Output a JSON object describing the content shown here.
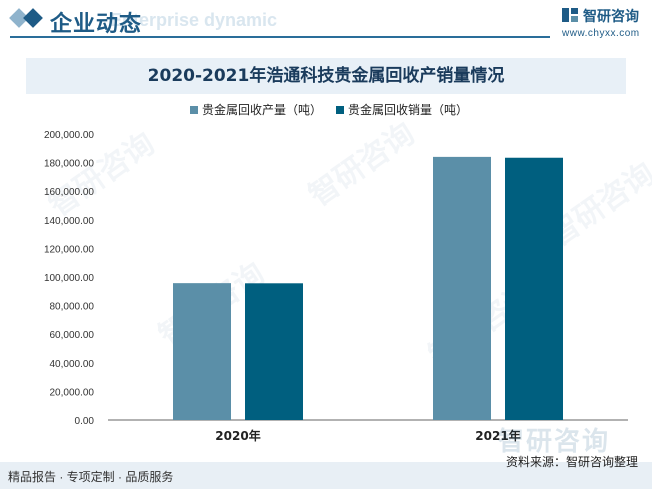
{
  "header": {
    "title": "企业动态",
    "subtitle": "Enterprise dynamic",
    "brand_name": "智研咨询",
    "brand_url": "www.chyxx.com",
    "accent": "#1e5b86"
  },
  "chart_data": {
    "type": "bar",
    "title": "2020-2021年浩通科技贵金属回收产销量情况",
    "categories": [
      "2020年",
      "2021年"
    ],
    "series": [
      {
        "name": "贵金属回收产量（吨）",
        "values": [
          95700,
          184000
        ],
        "color": "#5b8fa8"
      },
      {
        "name": "贵金属回收销量（吨）",
        "values": [
          95600,
          183400
        ],
        "color": "#005f7f"
      }
    ],
    "ylim": [
      0,
      200000
    ],
    "yticks": [
      0,
      20000,
      40000,
      60000,
      80000,
      100000,
      120000,
      140000,
      160000,
      180000,
      200000
    ],
    "ytick_labels": [
      "0.00",
      "20,000.00",
      "40,000.00",
      "60,000.00",
      "80,000.00",
      "100,000.00",
      "120,000.00",
      "140,000.00",
      "160,000.00",
      "180,000.00",
      "200,000.00"
    ],
    "grid": false,
    "legend": "top-center"
  },
  "watermark": "智研咨询",
  "footer": {
    "left": "精品报告 · 专项定制 · 品质服务",
    "right": "资料来源：智研咨询整理"
  }
}
